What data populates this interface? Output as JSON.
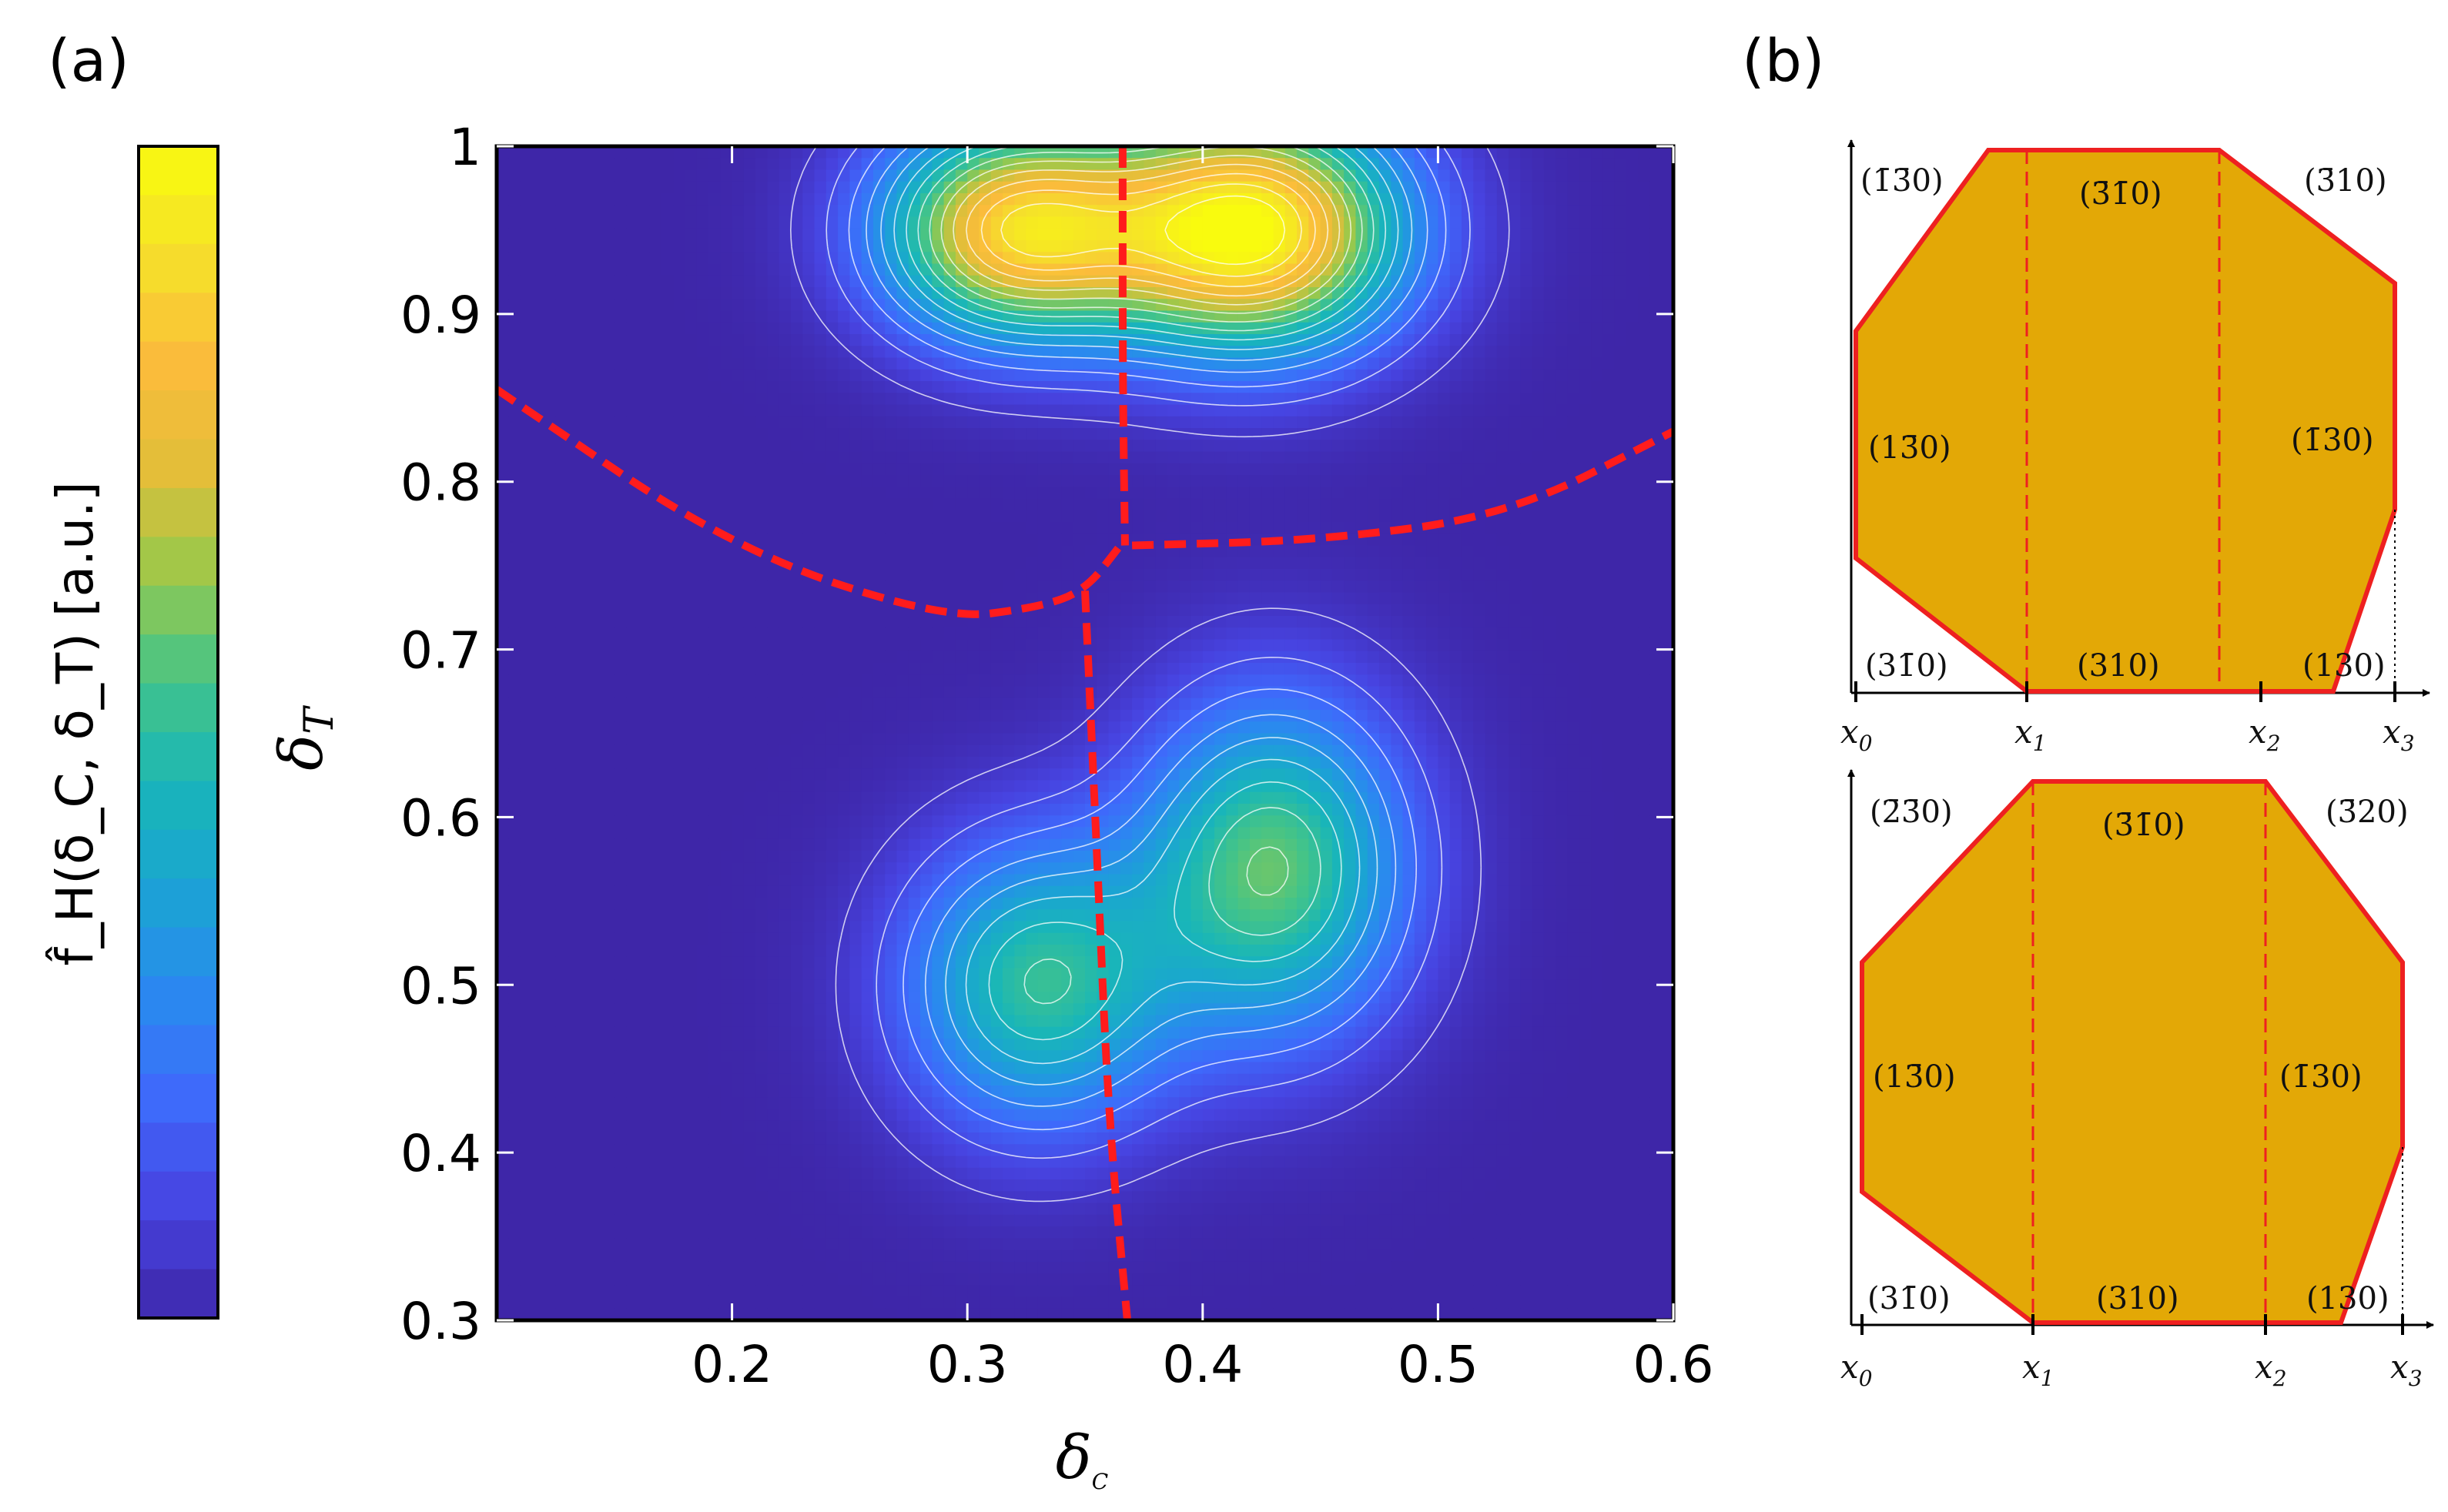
{
  "panel_labels": {
    "a": "(a)",
    "b": "(b)"
  },
  "chart_data": [
    {
      "type": "heatmap",
      "title": "",
      "xlabel": "δ_C",
      "ylabel": "δ_T",
      "xlim": [
        0.1,
        0.6
      ],
      "ylim": [
        0.3,
        1.0
      ],
      "x_ticks": [
        {
          "v": 0.2,
          "label": "0.2"
        },
        {
          "v": 0.3,
          "label": "0.3"
        },
        {
          "v": 0.4,
          "label": "0.4"
        },
        {
          "v": 0.5,
          "label": "0.5"
        },
        {
          "v": 0.6,
          "label": "0.6"
        }
      ],
      "y_ticks": [
        {
          "v": 0.3,
          "label": "0.3"
        },
        {
          "v": 0.4,
          "label": "0.4"
        },
        {
          "v": 0.5,
          "label": "0.5"
        },
        {
          "v": 0.6,
          "label": "0.6"
        },
        {
          "v": 0.7,
          "label": "0.7"
        },
        {
          "v": 0.8,
          "label": "0.8"
        },
        {
          "v": 0.9,
          "label": "0.9"
        },
        {
          "v": 1.0,
          "label": "1"
        }
      ],
      "colorbar": {
        "label": "f̂_H(δ_C, δ_T) [a.u.]",
        "colormap": "parula",
        "colors": [
          "#3e26a8",
          "#4743e0",
          "#3f68fb",
          "#2b88f0",
          "#1ba3d4",
          "#19b6b8",
          "#45c487",
          "#9cc84a",
          "#e4be39",
          "#fbbc3b",
          "#f5e12a",
          "#f9fb0e"
        ]
      },
      "density_peaks": [
        {
          "x": 0.42,
          "y": 0.95,
          "amp": 1.0,
          "sx": 0.045,
          "sy": 0.05
        },
        {
          "x": 0.32,
          "y": 0.95,
          "amp": 0.84,
          "sx": 0.04,
          "sy": 0.045
        },
        {
          "x": 0.43,
          "y": 0.57,
          "amp": 0.57,
          "sx": 0.04,
          "sy": 0.07
        },
        {
          "x": 0.33,
          "y": 0.5,
          "amp": 0.5,
          "sx": 0.04,
          "sy": 0.06
        }
      ],
      "boundaries": [
        {
          "name": "left-upper",
          "points": [
            [
              0.1,
              0.855
            ],
            [
              0.2,
              0.76
            ],
            [
              0.29,
              0.718
            ],
            [
              0.33,
              0.725
            ],
            [
              0.35,
              0.735
            ],
            [
              0.365,
              0.762
            ]
          ]
        },
        {
          "name": "right-upper",
          "points": [
            [
              0.37,
              0.762
            ],
            [
              0.45,
              0.765
            ],
            [
              0.53,
              0.78
            ],
            [
              0.6,
              0.83
            ]
          ]
        },
        {
          "name": "upper-vertical",
          "points": [
            [
              0.366,
              1.0
            ],
            [
              0.366,
              0.86
            ],
            [
              0.367,
              0.762
            ]
          ]
        },
        {
          "name": "lower-vertical",
          "points": [
            [
              0.35,
              0.735
            ],
            [
              0.355,
              0.58
            ],
            [
              0.36,
              0.42
            ],
            [
              0.368,
              0.3
            ]
          ]
        }
      ]
    }
  ],
  "facet_diagrams": [
    {
      "name": "top",
      "facet_labels": [
        "(1̄3̄0)",
        "(3̄1̄0)",
        "(3̄10)",
        "(13̄0)",
        "(1̄30)",
        "(31̄0)",
        "(310)",
        "(130)"
      ],
      "x_labels": [
        "x",
        "x",
        "x",
        "x"
      ],
      "x_subscripts": [
        "0",
        "1",
        "2",
        "3"
      ]
    },
    {
      "name": "bottom",
      "facet_labels": [
        "(2̄3̄0)",
        "(3̄1̄0)",
        "(3̄20)",
        "(13̄0)",
        "(1̄30)",
        "(31̄0)",
        "(310)",
        "(130)"
      ],
      "x_labels": [
        "x",
        "x",
        "x",
        "x"
      ],
      "x_subscripts": [
        "0",
        "1",
        "2",
        "3"
      ]
    }
  ]
}
